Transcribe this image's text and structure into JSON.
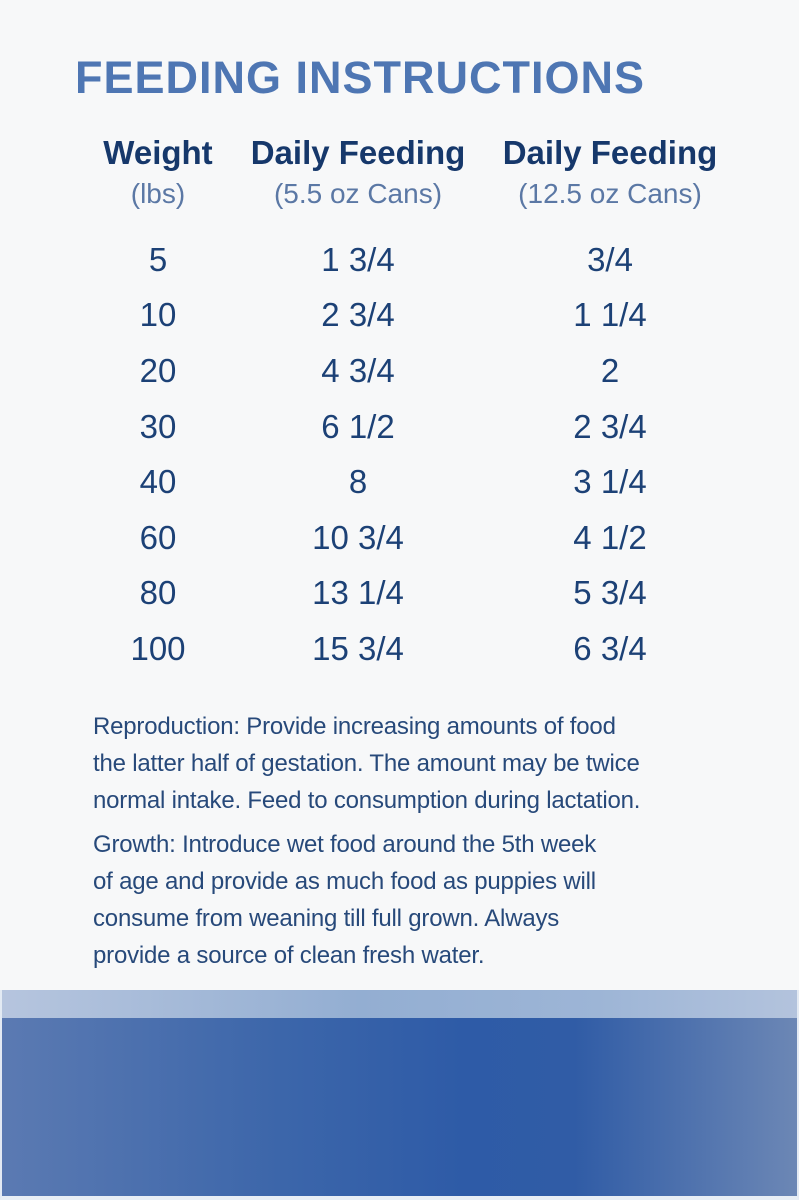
{
  "page": {
    "title": "FEEDING INSTRUCTIONS"
  },
  "table": {
    "columns": [
      {
        "label": "Weight",
        "sub": "(lbs)"
      },
      {
        "label": "Daily Feeding",
        "sub": "(5.5 oz Cans)"
      },
      {
        "label": "Daily Feeding",
        "sub": "(12.5 oz Cans)"
      }
    ],
    "rows": [
      {
        "weight": "5",
        "cans_55": "1 3/4",
        "cans_125": "3/4"
      },
      {
        "weight": "10",
        "cans_55": "2 3/4",
        "cans_125": "1 1/4"
      },
      {
        "weight": "20",
        "cans_55": "4 3/4",
        "cans_125": "2"
      },
      {
        "weight": "30",
        "cans_55": "6 1/2",
        "cans_125": "2 3/4"
      },
      {
        "weight": "40",
        "cans_55": "8",
        "cans_125": "3 1/4"
      },
      {
        "weight": "60",
        "cans_55": "10 3/4",
        "cans_125": "4 1/2"
      },
      {
        "weight": "80",
        "cans_55": "13 1/4",
        "cans_125": "5 3/4"
      },
      {
        "weight": "100",
        "cans_55": "15 3/4",
        "cans_125": "6 3/4"
      }
    ]
  },
  "notes": {
    "reproduction_lines": [
      "Reproduction: Provide increasing amounts of food",
      "the latter half of gestation. The amount may be twice",
      "normal intake. Feed to consumption during lactation."
    ],
    "growth_lines": [
      "Growth: Introduce wet food around the 5th week",
      "of age and provide as much food as puppies will",
      "consume from weaning till full grown. Always",
      "provide a source of clean fresh water."
    ]
  },
  "colors": {
    "background": "#f7f8f9",
    "title": "#4e76b3",
    "header": "#16386b",
    "subheader": "#5b78a5",
    "values": "#1c4176",
    "notes": "#27497a",
    "band_light": "#93aed2",
    "band_dark": "#2e5ba7"
  }
}
